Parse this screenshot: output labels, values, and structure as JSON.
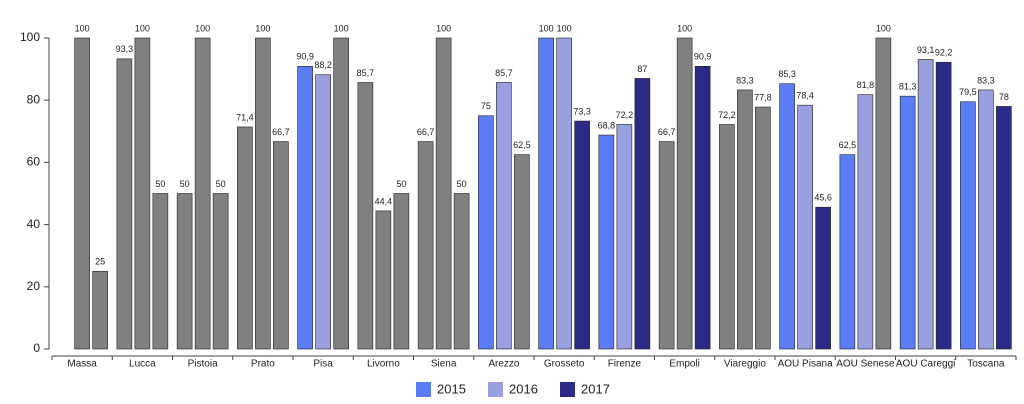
{
  "chart_data": {
    "type": "bar",
    "categories": [
      "Massa",
      "Lucca",
      "Pistoia",
      "Prato",
      "Pisa",
      "Livorno",
      "Siena",
      "Arezzo",
      "Grosseto",
      "Firenze",
      "Empoli",
      "Viareggio",
      "AOU Pisana",
      "AOU Senese",
      "AOU Careggi",
      "Toscana"
    ],
    "series": [
      {
        "name": "2015",
        "color": "#5b7cf4",
        "values": [
          null,
          93.3,
          50,
          71.4,
          90.9,
          85.7,
          66.7,
          75,
          100,
          68.8,
          66.7,
          72.2,
          85.3,
          62.5,
          81.3,
          79.5
        ],
        "value_labels": [
          null,
          "93,3",
          "50",
          "71,4",
          "90,9",
          "85,7",
          "66,7",
          "75",
          "100",
          "68,8",
          "66,7",
          "72,2",
          "85,3",
          "62,5",
          "81,3",
          "79,5"
        ],
        "colors": [
          null,
          "#808080",
          "#808080",
          "#808080",
          "#5b7cf4",
          "#808080",
          "#808080",
          "#5b7cf4",
          "#5b7cf4",
          "#5b7cf4",
          "#808080",
          "#808080",
          "#5b7cf4",
          "#5b7cf4",
          "#5b7cf4",
          "#5b7cf4"
        ]
      },
      {
        "name": "2016",
        "color": "#9a9fe0",
        "values": [
          100,
          100,
          100,
          100,
          88.2,
          44.4,
          100,
          85.7,
          100,
          72.2,
          100,
          83.3,
          78.4,
          81.8,
          93.1,
          83.3
        ],
        "value_labels": [
          "100",
          "100",
          "100",
          "100",
          "88,2",
          "44,4",
          "100",
          "85,7",
          "100",
          "72,2",
          "100",
          "83,3",
          "78,4",
          "81,8",
          "93,1",
          "83,3"
        ],
        "colors": [
          "#808080",
          "#808080",
          "#808080",
          "#808080",
          "#9a9fe0",
          "#808080",
          "#808080",
          "#9a9fe0",
          "#9a9fe0",
          "#9a9fe0",
          "#808080",
          "#808080",
          "#9a9fe0",
          "#9a9fe0",
          "#9a9fe0",
          "#9a9fe0"
        ]
      },
      {
        "name": "2017",
        "color": "#2b2b87",
        "values": [
          25,
          50,
          50,
          66.7,
          100,
          50,
          50,
          62.5,
          73.3,
          87,
          90.9,
          77.8,
          45.6,
          100,
          92.2,
          78
        ],
        "value_labels": [
          "25",
          "50",
          "50",
          "66,7",
          "100",
          "50",
          "50",
          "62,5",
          "73,3",
          "87",
          "90,9",
          "77,8",
          "45,6",
          "100",
          "92,2",
          "78"
        ],
        "colors": [
          "#808080",
          "#808080",
          "#808080",
          "#808080",
          "#808080",
          "#808080",
          "#808080",
          "#808080",
          "#2b2b87",
          "#2b2b87",
          "#2b2b87",
          "#808080",
          "#2b2b87",
          "#808080",
          "#2b2b87",
          "#2b2b87"
        ]
      }
    ],
    "ylim": [
      0,
      100
    ],
    "yticks": [
      0,
      20,
      40,
      60,
      80,
      100
    ],
    "legend": "bottom"
  }
}
